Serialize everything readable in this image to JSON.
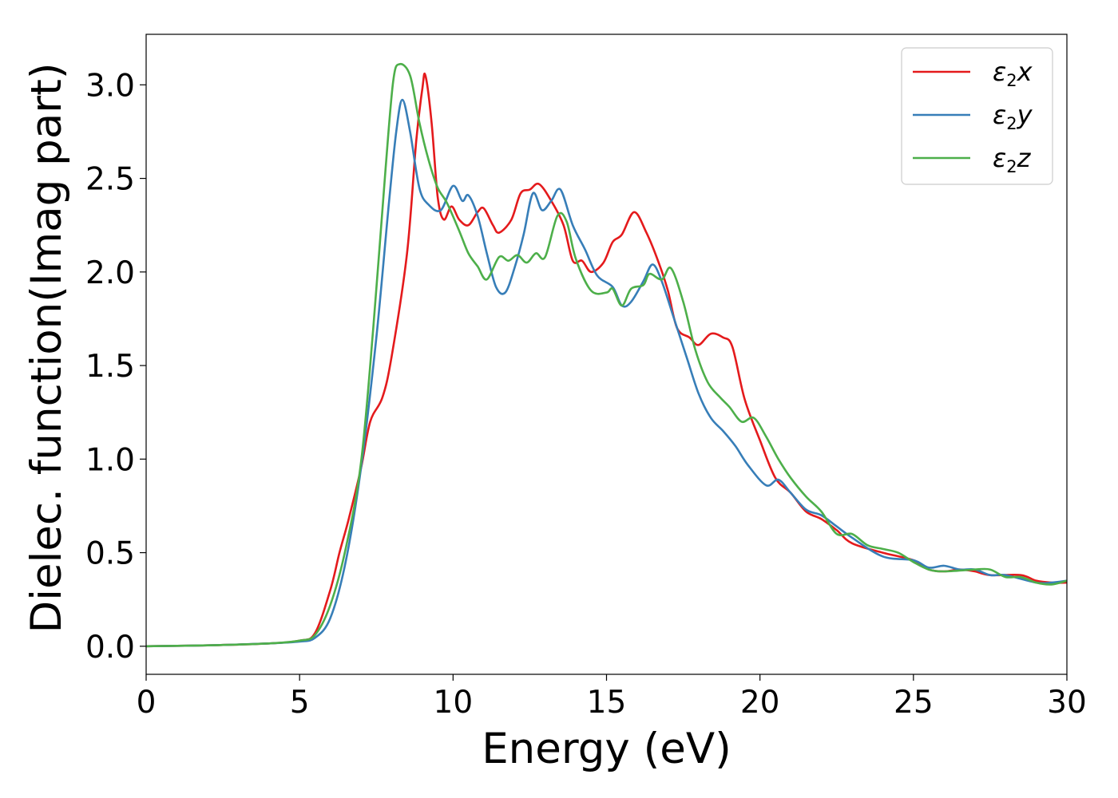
{
  "chart_data": {
    "type": "line",
    "title": "",
    "xlabel": "Energy (eV)",
    "ylabel": "Dielec. function(Imag part)",
    "xlim": [
      0,
      30
    ],
    "ylim": [
      -0.15,
      3.27
    ],
    "xticks": [
      0,
      5,
      10,
      15,
      20,
      25,
      30
    ],
    "yticks": [
      0.0,
      0.5,
      1.0,
      1.5,
      2.0,
      2.5,
      3.0
    ],
    "xtick_labels": [
      "0",
      "5",
      "10",
      "15",
      "20",
      "25",
      "30"
    ],
    "ytick_labels": [
      "0.0",
      "0.5",
      "1.0",
      "1.5",
      "2.0",
      "2.5",
      "3.0"
    ],
    "grid": false,
    "legend_position": "top-right",
    "series": [
      {
        "name": "ε2x",
        "legend_symbol": "ε",
        "legend_sub": "2",
        "legend_var": "x",
        "color": "#e41a1c",
        "points": [
          [
            0,
            0
          ],
          [
            2,
            0.005
          ],
          [
            4,
            0.015
          ],
          [
            5,
            0.03
          ],
          [
            5.5,
            0.07
          ],
          [
            6,
            0.3
          ],
          [
            6.3,
            0.5
          ],
          [
            6.6,
            0.68
          ],
          [
            7,
            0.95
          ],
          [
            7.3,
            1.2
          ],
          [
            7.7,
            1.33
          ],
          [
            8,
            1.55
          ],
          [
            8.5,
            2.1
          ],
          [
            8.8,
            2.7
          ],
          [
            9,
            2.98
          ],
          [
            9.1,
            3.05
          ],
          [
            9.3,
            2.8
          ],
          [
            9.5,
            2.4
          ],
          [
            9.7,
            2.28
          ],
          [
            9.95,
            2.35
          ],
          [
            10.2,
            2.28
          ],
          [
            10.5,
            2.25
          ],
          [
            10.8,
            2.32
          ],
          [
            11,
            2.34
          ],
          [
            11.3,
            2.25
          ],
          [
            11.5,
            2.21
          ],
          [
            11.9,
            2.28
          ],
          [
            12.2,
            2.42
          ],
          [
            12.5,
            2.44
          ],
          [
            12.8,
            2.47
          ],
          [
            13.2,
            2.38
          ],
          [
            13.6,
            2.25
          ],
          [
            13.9,
            2.06
          ],
          [
            14.2,
            2.06
          ],
          [
            14.5,
            2.0
          ],
          [
            14.9,
            2.05
          ],
          [
            15.2,
            2.16
          ],
          [
            15.5,
            2.2
          ],
          [
            15.9,
            2.32
          ],
          [
            16.3,
            2.21
          ],
          [
            16.7,
            2.05
          ],
          [
            17,
            1.9
          ],
          [
            17.3,
            1.7
          ],
          [
            17.7,
            1.65
          ],
          [
            18,
            1.61
          ],
          [
            18.4,
            1.67
          ],
          [
            18.8,
            1.65
          ],
          [
            19.1,
            1.6
          ],
          [
            19.5,
            1.32
          ],
          [
            20,
            1.1
          ],
          [
            20.5,
            0.9
          ],
          [
            21,
            0.82
          ],
          [
            21.5,
            0.72
          ],
          [
            22,
            0.68
          ],
          [
            22.5,
            0.62
          ],
          [
            23,
            0.55
          ],
          [
            24,
            0.5
          ],
          [
            25,
            0.46
          ],
          [
            25.5,
            0.41
          ],
          [
            26,
            0.4
          ],
          [
            26.5,
            0.41
          ],
          [
            27,
            0.4
          ],
          [
            27.5,
            0.38
          ],
          [
            28.5,
            0.38
          ],
          [
            29,
            0.35
          ],
          [
            29.5,
            0.34
          ],
          [
            30,
            0.34
          ]
        ]
      },
      {
        "name": "ε2y",
        "legend_symbol": "ε",
        "legend_sub": "2",
        "legend_var": "y",
        "color": "#377eb8",
        "points": [
          [
            0,
            0
          ],
          [
            2,
            0.005
          ],
          [
            4,
            0.015
          ],
          [
            5,
            0.025
          ],
          [
            5.5,
            0.045
          ],
          [
            6,
            0.15
          ],
          [
            6.5,
            0.45
          ],
          [
            7,
            0.95
          ],
          [
            7.5,
            1.65
          ],
          [
            7.9,
            2.35
          ],
          [
            8.15,
            2.75
          ],
          [
            8.35,
            2.92
          ],
          [
            8.6,
            2.75
          ],
          [
            8.9,
            2.45
          ],
          [
            9.2,
            2.36
          ],
          [
            9.6,
            2.33
          ],
          [
            10,
            2.46
          ],
          [
            10.3,
            2.38
          ],
          [
            10.5,
            2.41
          ],
          [
            10.8,
            2.3
          ],
          [
            11.1,
            2.1
          ],
          [
            11.4,
            1.92
          ],
          [
            11.7,
            1.89
          ],
          [
            12,
            2.02
          ],
          [
            12.3,
            2.2
          ],
          [
            12.6,
            2.42
          ],
          [
            12.9,
            2.33
          ],
          [
            13.2,
            2.38
          ],
          [
            13.5,
            2.44
          ],
          [
            13.9,
            2.25
          ],
          [
            14.3,
            2.12
          ],
          [
            14.7,
            1.98
          ],
          [
            15.2,
            1.92
          ],
          [
            15.5,
            1.82
          ],
          [
            15.8,
            1.84
          ],
          [
            16.2,
            1.95
          ],
          [
            16.5,
            2.04
          ],
          [
            16.8,
            1.95
          ],
          [
            17.2,
            1.75
          ],
          [
            17.6,
            1.55
          ],
          [
            18,
            1.35
          ],
          [
            18.4,
            1.22
          ],
          [
            18.8,
            1.15
          ],
          [
            19.2,
            1.07
          ],
          [
            19.6,
            0.97
          ],
          [
            20.2,
            0.86
          ],
          [
            20.6,
            0.89
          ],
          [
            21,
            0.82
          ],
          [
            21.5,
            0.73
          ],
          [
            22,
            0.7
          ],
          [
            22.5,
            0.64
          ],
          [
            23,
            0.58
          ],
          [
            24,
            0.48
          ],
          [
            25,
            0.46
          ],
          [
            25.5,
            0.42
          ],
          [
            26,
            0.43
          ],
          [
            26.5,
            0.41
          ],
          [
            27,
            0.41
          ],
          [
            27.5,
            0.38
          ],
          [
            28,
            0.38
          ],
          [
            29,
            0.34
          ],
          [
            29.5,
            0.34
          ],
          [
            30,
            0.35
          ]
        ]
      },
      {
        "name": "ε2z",
        "legend_symbol": "ε",
        "legend_sub": "2",
        "legend_var": "z",
        "color": "#4daf4a",
        "points": [
          [
            0,
            0
          ],
          [
            2,
            0.005
          ],
          [
            4,
            0.015
          ],
          [
            5,
            0.03
          ],
          [
            5.5,
            0.06
          ],
          [
            6,
            0.22
          ],
          [
            6.5,
            0.52
          ],
          [
            7,
            0.98
          ],
          [
            7.4,
            1.7
          ],
          [
            7.8,
            2.55
          ],
          [
            8.05,
            3.02
          ],
          [
            8.25,
            3.11
          ],
          [
            8.6,
            3.05
          ],
          [
            8.9,
            2.8
          ],
          [
            9.2,
            2.6
          ],
          [
            9.5,
            2.45
          ],
          [
            9.8,
            2.37
          ],
          [
            10.2,
            2.22
          ],
          [
            10.5,
            2.1
          ],
          [
            10.8,
            2.03
          ],
          [
            11.1,
            1.96
          ],
          [
            11.5,
            2.08
          ],
          [
            11.8,
            2.06
          ],
          [
            12.1,
            2.09
          ],
          [
            12.4,
            2.05
          ],
          [
            12.7,
            2.1
          ],
          [
            13,
            2.08
          ],
          [
            13.4,
            2.3
          ],
          [
            13.7,
            2.27
          ],
          [
            14,
            2.07
          ],
          [
            14.5,
            1.9
          ],
          [
            15,
            1.89
          ],
          [
            15.2,
            1.91
          ],
          [
            15.5,
            1.82
          ],
          [
            15.8,
            1.91
          ],
          [
            16.2,
            1.93
          ],
          [
            16.4,
            1.99
          ],
          [
            16.8,
            1.96
          ],
          [
            17.1,
            2.02
          ],
          [
            17.5,
            1.84
          ],
          [
            17.9,
            1.58
          ],
          [
            18.3,
            1.41
          ],
          [
            18.7,
            1.33
          ],
          [
            19,
            1.28
          ],
          [
            19.4,
            1.2
          ],
          [
            19.8,
            1.22
          ],
          [
            20.2,
            1.12
          ],
          [
            20.6,
            1.0
          ],
          [
            21,
            0.9
          ],
          [
            21.5,
            0.8
          ],
          [
            22,
            0.72
          ],
          [
            22.5,
            0.6
          ],
          [
            23,
            0.6
          ],
          [
            23.5,
            0.54
          ],
          [
            24,
            0.52
          ],
          [
            24.5,
            0.5
          ],
          [
            25,
            0.45
          ],
          [
            25.5,
            0.41
          ],
          [
            26,
            0.4
          ],
          [
            27,
            0.41
          ],
          [
            27.5,
            0.41
          ],
          [
            28,
            0.37
          ],
          [
            28.5,
            0.37
          ],
          [
            29,
            0.34
          ],
          [
            29.5,
            0.33
          ],
          [
            30,
            0.35
          ]
        ]
      }
    ]
  }
}
